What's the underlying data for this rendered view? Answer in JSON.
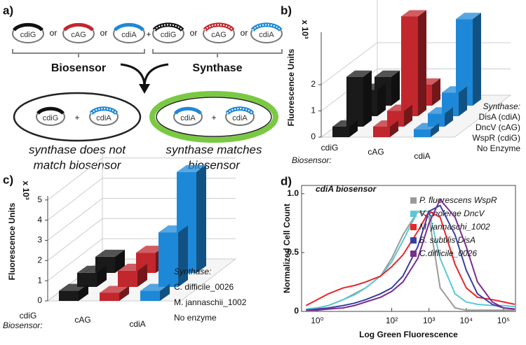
{
  "diagram": {
    "label": "a)",
    "or": "or",
    "plus": "+",
    "biosensor_options": [
      "cdiG",
      "cAG",
      "cdiA"
    ],
    "synthase_options": [
      "cdiG",
      "cAG",
      "cdiA"
    ],
    "biosensor_title": "Biosensor",
    "synthase_title": "Synthase",
    "mismatch": {
      "biosensor": "cdiG",
      "synthase": "cdiA",
      "caption": [
        "synthase does not",
        "match biosensor"
      ]
    },
    "match": {
      "biosensor": "cdiA",
      "synthase": "cdiA",
      "caption": [
        "synthase matches",
        "biosensor"
      ]
    }
  },
  "chart_data": [
    {
      "type": "bar3d",
      "panel_label": "b)",
      "ylabel": "Fluorescence Units",
      "yunit": "x 10³",
      "ylim": [
        0,
        4
      ],
      "yticks": [
        0,
        1,
        2
      ],
      "categories": [
        "cdiG",
        "cAG",
        "cdiA"
      ],
      "category_colors": [
        "#1a1a1a",
        "#c1272d",
        "#1e88d8"
      ],
      "category_title": "Biosensor:",
      "series_title": "Synthase:",
      "series": [
        {
          "name": "No Enzyme",
          "values": [
            0.4,
            0.4,
            0.3
          ]
        },
        {
          "name": "WspR (cdiG)",
          "values": [
            1.9,
            0.6,
            0.5
          ]
        },
        {
          "name": "DncV (cAG)",
          "values": [
            1.0,
            3.8,
            0.9
          ]
        },
        {
          "name": "DisA (cdiA)",
          "values": [
            1.1,
            0.8,
            3.3
          ]
        }
      ]
    },
    {
      "type": "bar3d",
      "panel_label": "c)",
      "ylabel": "Fluorescence Units",
      "yunit": "x 10³",
      "ylim": [
        0,
        5.2
      ],
      "yticks": [
        0,
        1,
        2,
        3,
        4,
        5
      ],
      "categories": [
        "cdiG",
        "cAG",
        "cdiA"
      ],
      "category_colors": [
        "#1a1a1a",
        "#c1272d",
        "#1e88d8"
      ],
      "category_title": "Biosensor:",
      "series_title": "Synthase:",
      "series": [
        {
          "name": "No enzyme",
          "values": [
            0.5,
            0.4,
            0.5
          ]
        },
        {
          "name": "M. jannaschii_1002",
          "values": [
            0.7,
            0.8,
            2.7
          ]
        },
        {
          "name": "C. difficile_0026",
          "values": [
            0.8,
            1.0,
            5.0
          ]
        }
      ]
    },
    {
      "type": "line",
      "panel_label": "d)",
      "title": "cdiA biosensor",
      "xlabel": "Log Green Fluorescence",
      "ylabel": "Normalized Cell Count",
      "xscale": "log",
      "xlim": [
        0.38,
        210000
      ],
      "xticks": [
        {
          "value": 1,
          "label": "10⁰"
        },
        {
          "value": 100,
          "label": "10²"
        },
        {
          "value": 1000,
          "label": "10³"
        },
        {
          "value": 10000,
          "label": "10⁴"
        },
        {
          "value": 100000,
          "label": "10⁵"
        }
      ],
      "ylim": [
        0,
        1.07
      ],
      "yticks": [
        0,
        0.5,
        {
          "value": 1,
          "label": "1.0"
        }
      ],
      "x": [
        0.5,
        1,
        2,
        5,
        10,
        20,
        50,
        100,
        200,
        500,
        1000,
        2000,
        5000,
        10000,
        20000,
        50000,
        100000,
        200000
      ],
      "series": [
        {
          "name": "P. fluorescens WspR",
          "color": "#9a9a9a",
          "values": [
            0.02,
            0.03,
            0.05,
            0.1,
            0.15,
            0.2,
            0.3,
            0.45,
            0.65,
            0.85,
            0.8,
            0.2,
            0.03,
            0.01,
            0.01,
            0.01,
            0.01,
            0.01
          ]
        },
        {
          "name": "V. cholerae DncV",
          "color": "#5cc8d6",
          "values": [
            0.02,
            0.03,
            0.05,
            0.1,
            0.14,
            0.2,
            0.3,
            0.42,
            0.6,
            0.85,
            0.85,
            0.45,
            0.15,
            0.08,
            0.06,
            0.05,
            0.05,
            0.04
          ]
        },
        {
          "name": "M. jannaschi_1002",
          "color": "#e8262b",
          "values": [
            0.05,
            0.1,
            0.15,
            0.2,
            0.22,
            0.25,
            0.3,
            0.38,
            0.48,
            0.68,
            0.85,
            0.8,
            0.4,
            0.2,
            0.12,
            0.1,
            0.08,
            0.06
          ]
        },
        {
          "name": "B. subtilis DisA",
          "color": "#3a3fa0",
          "values": [
            0.01,
            0.02,
            0.03,
            0.05,
            0.07,
            0.1,
            0.15,
            0.2,
            0.3,
            0.55,
            0.85,
            0.9,
            0.65,
            0.35,
            0.15,
            0.06,
            0.03,
            0.02
          ]
        },
        {
          "name": "C.difficile_0026",
          "color": "#7b2d8e",
          "values": [
            0.01,
            0.01,
            0.02,
            0.03,
            0.05,
            0.08,
            0.12,
            0.17,
            0.25,
            0.45,
            0.75,
            0.95,
            0.8,
            0.55,
            0.25,
            0.08,
            0.03,
            0.02
          ]
        }
      ]
    }
  ]
}
